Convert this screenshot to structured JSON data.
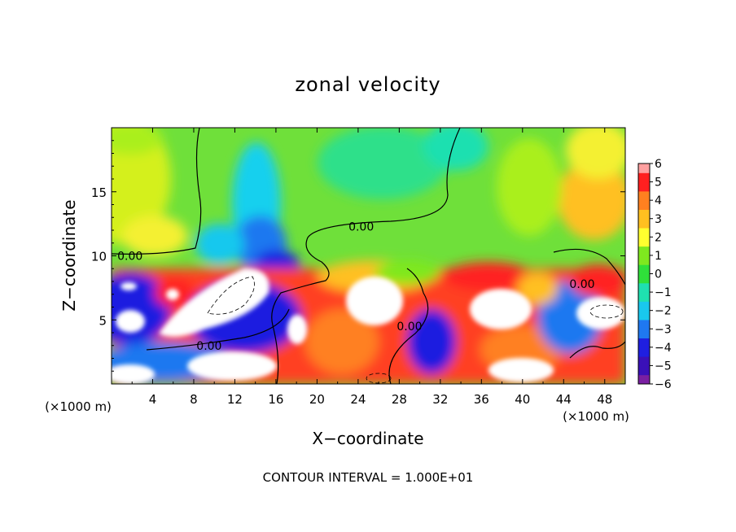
{
  "chart_data": {
    "type": "heatmap",
    "title": "zonal velocity",
    "xlabel": "X−coordinate",
    "ylabel": "Z−coordinate",
    "x_unit_left": "(×1000 m)",
    "x_unit_right": "(×1000 m)",
    "footer": "CONTOUR INTERVAL = 1.000E+01",
    "xlim": [
      0,
      50
    ],
    "ylim": [
      0,
      20
    ],
    "x_ticks": [
      4,
      8,
      12,
      16,
      20,
      24,
      28,
      32,
      36,
      40,
      44,
      48
    ],
    "x_tick_labels": [
      "4",
      "8",
      "12",
      "16",
      "20",
      "24",
      "28",
      "32",
      "36",
      "40",
      "44",
      "48"
    ],
    "y_ticks": [
      5,
      10,
      15
    ],
    "y_tick_labels": [
      "5",
      "10",
      "15"
    ],
    "colorbar": {
      "levels": [
        -6,
        -5,
        -4,
        -3,
        -2,
        -1,
        0,
        1,
        2,
        3,
        4,
        5,
        6
      ],
      "labels": [
        "−6",
        "−5",
        "−4",
        "−3",
        "−2",
        "−1",
        "0",
        "1",
        "2",
        "3",
        "4",
        "5",
        "6"
      ],
      "colors": [
        "#7a1fa2",
        "#3a10b8",
        "#1f1fe0",
        "#1f78f0",
        "#19c8ee",
        "#1fe0b0",
        "#2fe03a",
        "#7fe81f",
        "#ffff2f",
        "#ffc020",
        "#ff8020",
        "#ff2020",
        "#ffa0a0"
      ]
    },
    "contour_labels": [
      {
        "text": "0.00",
        "x": 1.8,
        "z": 10.0
      },
      {
        "text": "0.00",
        "x": 9.5,
        "z": 3.0
      },
      {
        "text": "0.00",
        "x": 24.3,
        "z": 12.3
      },
      {
        "text": "0.00",
        "x": 29.0,
        "z": 4.5
      },
      {
        "text": "0.00",
        "x": 45.8,
        "z": 7.8
      }
    ]
  }
}
